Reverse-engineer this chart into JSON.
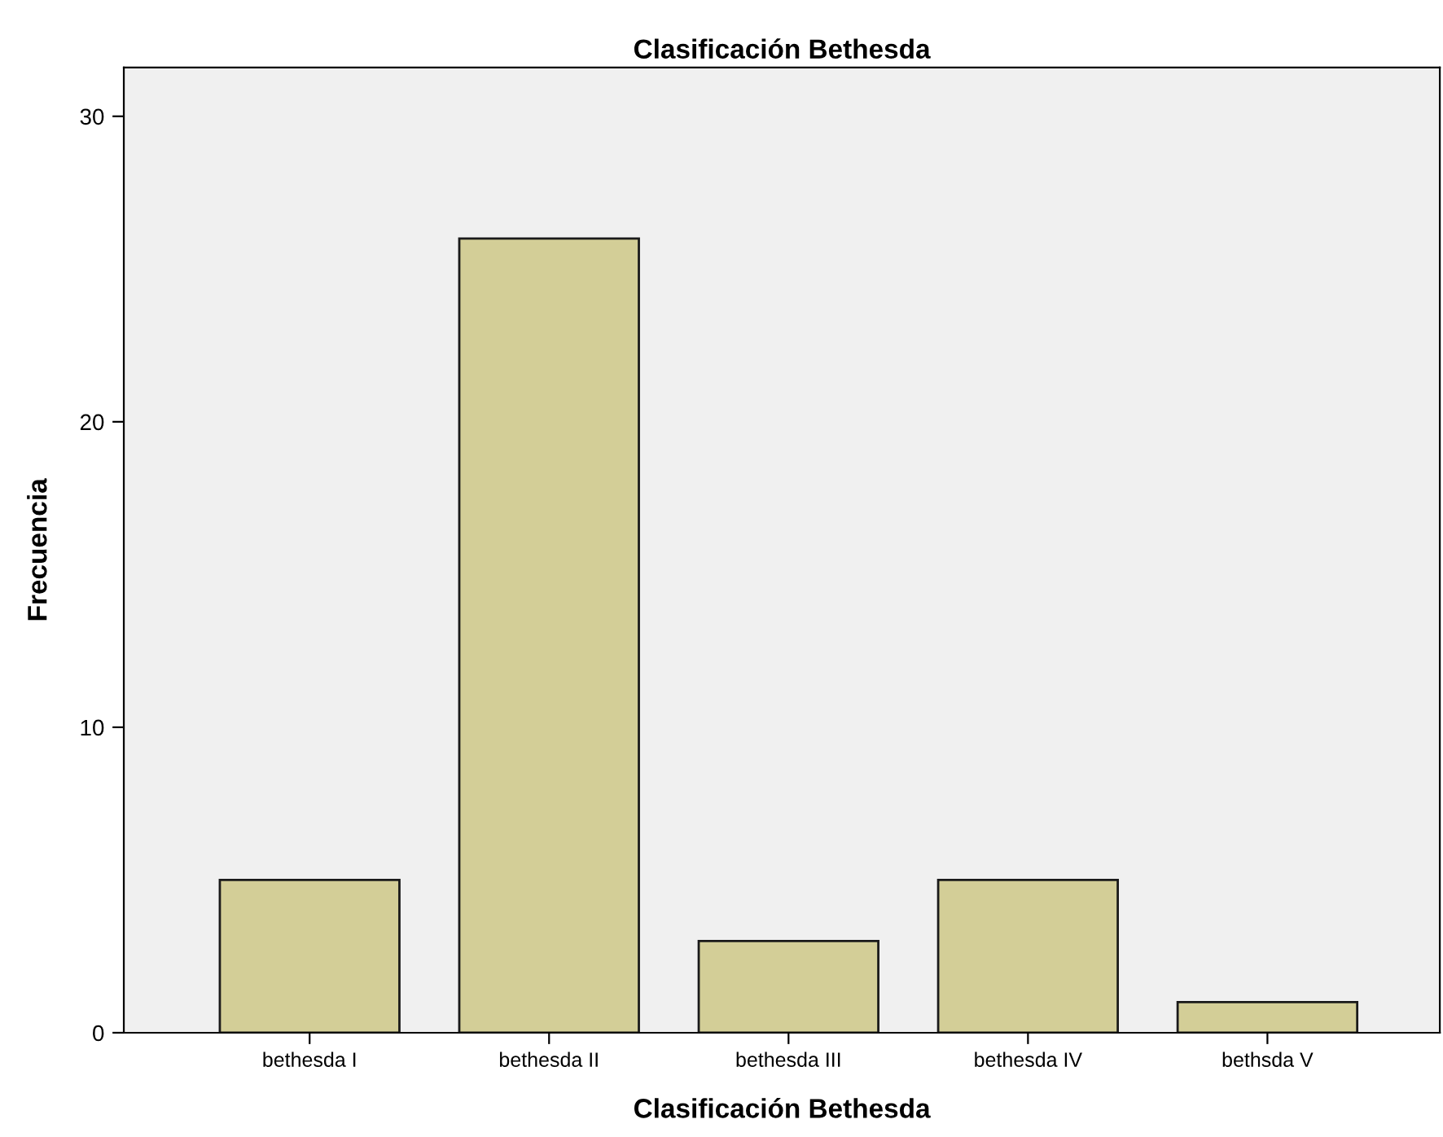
{
  "chart_data": {
    "type": "bar",
    "title": "Clasificación Bethesda",
    "xlabel": "Clasificación Bethesda",
    "ylabel": "Frecuencia",
    "categories": [
      "bethesda I",
      "bethesda II",
      "bethesda III",
      "bethesda IV",
      "bethsda V"
    ],
    "values": [
      5,
      26,
      3,
      5,
      1
    ],
    "color": "#d3ce97",
    "ylim": [
      0,
      31.6
    ],
    "yticks": [
      0,
      10,
      20,
      30
    ],
    "grid": false
  }
}
